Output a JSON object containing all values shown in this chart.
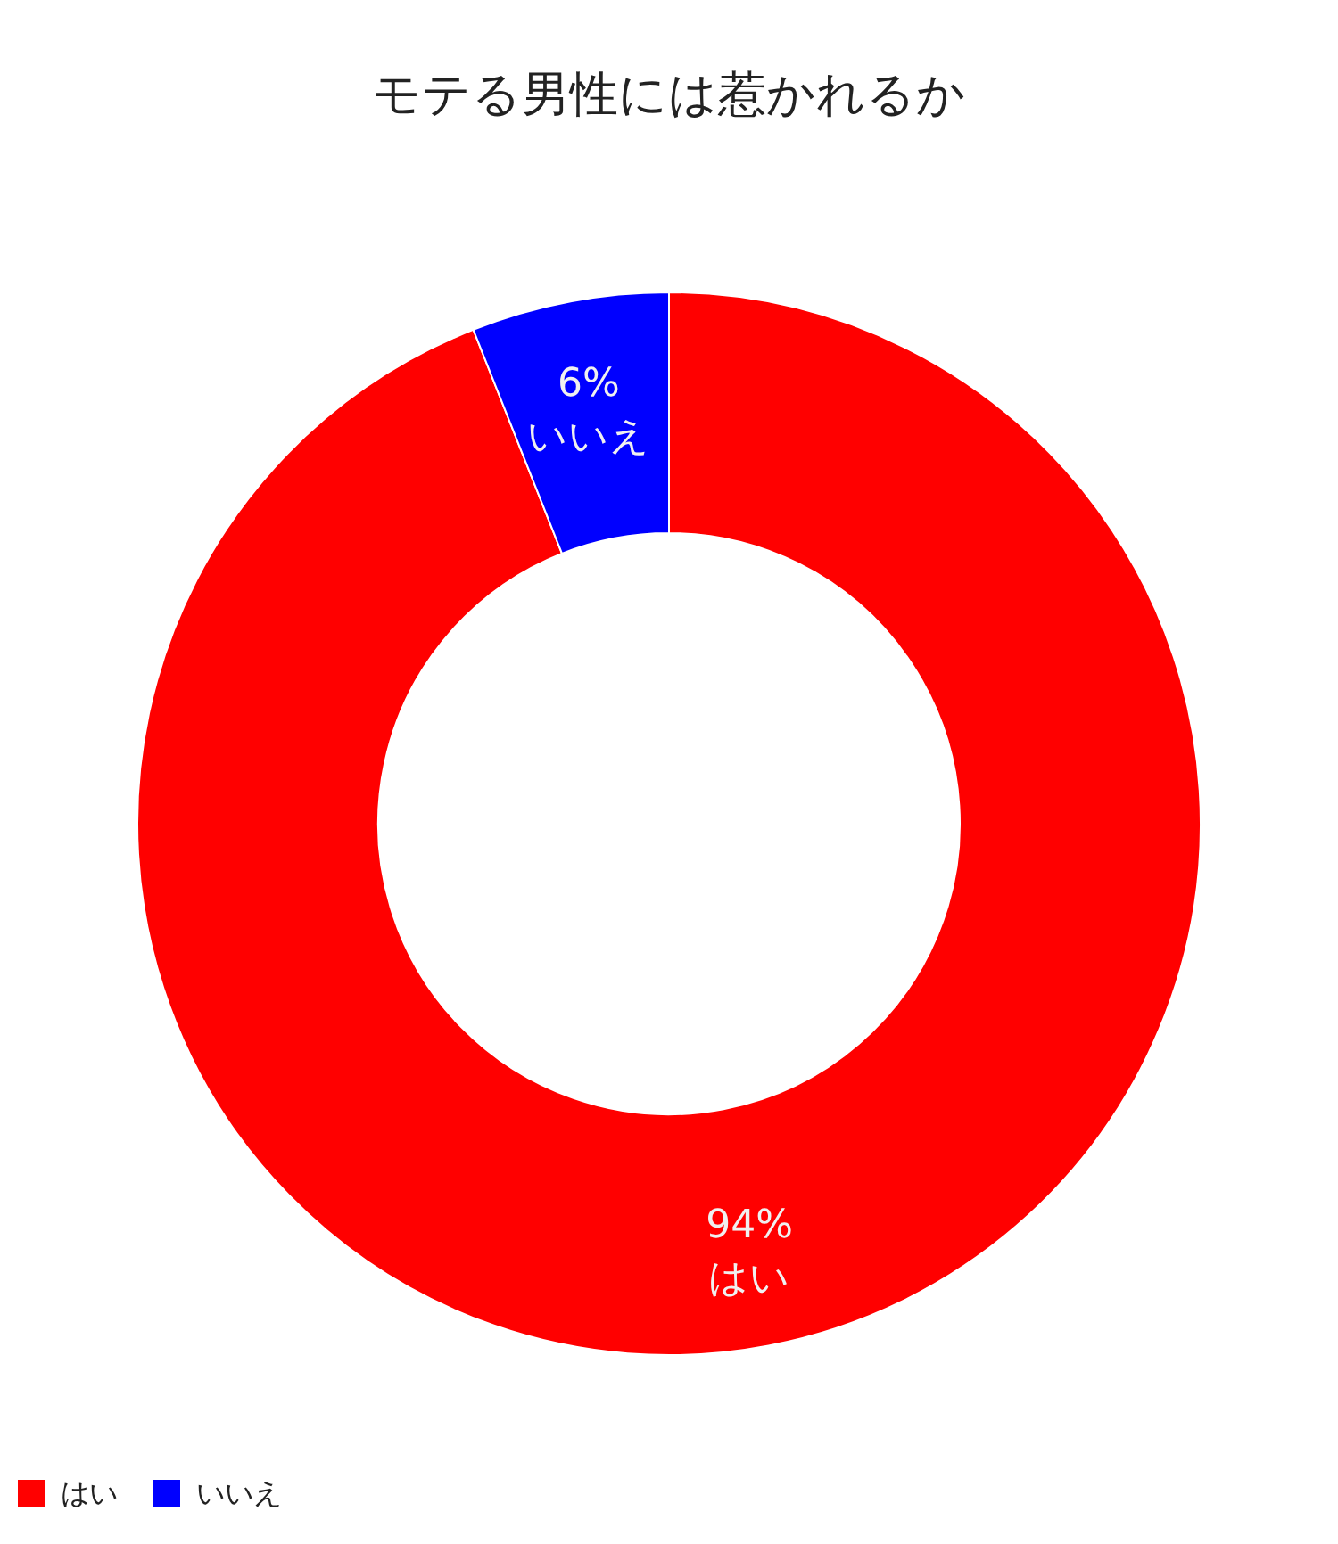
{
  "chart_data": {
    "type": "donut",
    "title": "モテる男性には惹かれるか",
    "categories": [
      "はい",
      "いいえ"
    ],
    "values": [
      94,
      6
    ],
    "colors": [
      "#ff0000",
      "#0000ff"
    ],
    "value_labels": [
      "94%",
      "6%"
    ],
    "legend": "bottom left"
  }
}
